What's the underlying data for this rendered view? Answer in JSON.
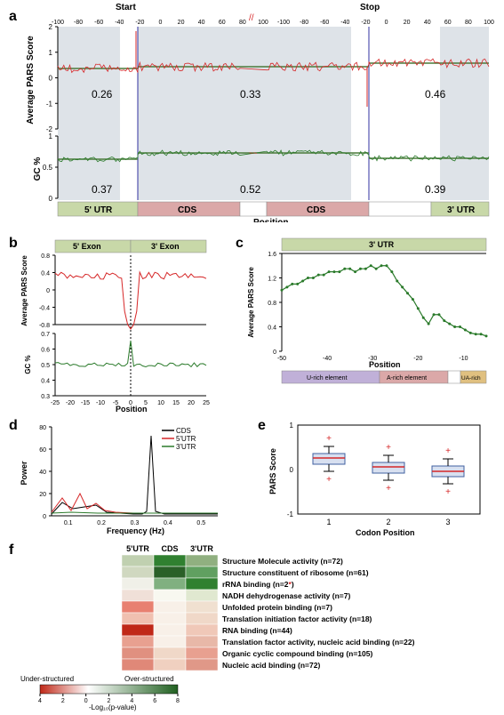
{
  "panel_a": {
    "label": "a",
    "top_axis_ticks": [
      "-100",
      "-80",
      "-60",
      "-40",
      "-20",
      "0",
      "20",
      "40",
      "60",
      "80",
      "100",
      "-100",
      "-80",
      "-60",
      "-40",
      "-20",
      "0",
      "20",
      "40",
      "60",
      "80",
      "100"
    ],
    "start_label": "Start",
    "stop_label": "Stop",
    "pars_ylabel": "Average PARS Score",
    "pars_yticks": [
      "-2",
      "-1",
      "0",
      "1",
      "2"
    ],
    "pars_ylim": [
      -2,
      2
    ],
    "pars_color": "#d62728",
    "pars_hline_color": "#4a7a3a",
    "pars_values": {
      "5utr": "0.26",
      "cds": "0.33",
      "3utr": "0.46"
    },
    "gc_ylabel": "GC %",
    "gc_yticks": [
      "0",
      "0.5",
      "1"
    ],
    "gc_ylim": [
      0,
      1
    ],
    "gc_color": "#2a7a2a",
    "gc_values": {
      "5utr": "0.37",
      "cds": "0.52",
      "3utr": "0.39"
    },
    "x_label": "Position",
    "regions": [
      {
        "name": "5' UTR",
        "color": "#c8d8a8"
      },
      {
        "name": "CDS",
        "color": "#dba8a8"
      },
      {
        "name": "CDS",
        "color": "#dba8a8"
      },
      {
        "name": "3' UTR",
        "color": "#c8d8a8"
      }
    ],
    "shade_color": "#b8c0c8",
    "blue_line": "#3030a0"
  },
  "panel_b": {
    "label": "b",
    "top_regions": [
      {
        "name": "5' Exon",
        "color": "#c8d8a8"
      },
      {
        "name": "3' Exon",
        "color": "#c8d8a8"
      }
    ],
    "pars_ylabel": "Average PARS Score",
    "pars_yticks": [
      "-0.8",
      "-0.4",
      "0",
      "0.4",
      "0.8"
    ],
    "pars_color": "#d62728",
    "gc_ylabel": "GC %",
    "gc_yticks": [
      "0.3",
      "0.4",
      "0.5",
      "0.6",
      "0.7"
    ],
    "gc_color": "#2a7a2a",
    "xticks": [
      "-25",
      "-20",
      "-15",
      "-10",
      "-5",
      "0",
      "5",
      "10",
      "15",
      "20",
      "25"
    ],
    "x_label": "Position"
  },
  "panel_c": {
    "label": "c",
    "top_region": {
      "name": "3' UTR",
      "color": "#c8d8a8"
    },
    "ylabel": "Average PARS Score",
    "yticks": [
      "0",
      "0.4",
      "0.8",
      "1.2",
      "1.6"
    ],
    "xticks": [
      "-50",
      "-40",
      "-30",
      "-20",
      "-10"
    ],
    "x_label": "Position",
    "color": "#2a7a2a",
    "bottom_regions": [
      {
        "name": "U-rich element",
        "color": "#b8a8d0"
      },
      {
        "name": "A-rich element",
        "color": "#dba8a8"
      },
      {
        "name": "",
        "color": "#ffffff"
      },
      {
        "name": "UA-rich",
        "color": "#e0c080"
      }
    ]
  },
  "panel_d": {
    "label": "d",
    "ylabel": "Power",
    "yticks": [
      "0",
      "20",
      "40",
      "60",
      "80"
    ],
    "xticks": [
      "0.1",
      "0.2",
      "0.3",
      "0.4",
      "0.5"
    ],
    "xlabel": "Frequency (Hz)",
    "legend": [
      {
        "name": "CDS",
        "color": "#000000"
      },
      {
        "name": "5'UTR",
        "color": "#d62728"
      },
      {
        "name": "3'UTR",
        "color": "#2a7a2a"
      }
    ]
  },
  "panel_e": {
    "label": "e",
    "ylabel": "PARS Score",
    "yticks": [
      "-1",
      "0",
      "1"
    ],
    "xticks": [
      "1",
      "2",
      "3"
    ],
    "xlabel": "Codon Position",
    "box_color": "#b0c0e0",
    "median_color": "#d62728"
  },
  "panel_f": {
    "label": "f",
    "col_headers": [
      "5'UTR",
      "CDS",
      "3'UTR"
    ],
    "rows": [
      {
        "label": "Structure Molecule activity (n=72)",
        "values": [
          "#c0d0b0",
          "#308030",
          "#90b080"
        ]
      },
      {
        "label": "Structure constituent of ribosome (n=61)",
        "values": [
          "#d0d8c0",
          "#2a6028",
          "#60a060"
        ]
      },
      {
        "label": "rRNA binding (n=2*)",
        "values": [
          "#f0f0e8",
          "#80b080",
          "#308030"
        ],
        "star": "*"
      },
      {
        "label": "NADH dehydrogenase activity (n=7)",
        "values": [
          "#f0e0d8",
          "#f8f8f0",
          "#e0e8d0"
        ]
      },
      {
        "label": "Unfolded protein binding (n=7)",
        "values": [
          "#e88070",
          "#f8f0e8",
          "#f0e0d0"
        ]
      },
      {
        "label": "Translation initiation factor activity (n=18)",
        "values": [
          "#f0c0b0",
          "#f8f0e8",
          "#f0d8c8"
        ]
      },
      {
        "label": "RNA binding (n=44)",
        "values": [
          "#c02818",
          "#f8f0e8",
          "#f0c8b8"
        ]
      },
      {
        "label": "Translation factor activity, nucleic acid binding (n=22)",
        "values": [
          "#e8a090",
          "#f8f0e8",
          "#e8b8a8"
        ]
      },
      {
        "label": "Organic cyclic compound binding (n=105)",
        "values": [
          "#e09080",
          "#f0d8c8",
          "#e8a090"
        ]
      },
      {
        "label": "Nucleic acid binding (n=72)",
        "values": [
          "#e08878",
          "#f0d0c0",
          "#e09888"
        ]
      }
    ],
    "scale_left": "Under-structured",
    "scale_right": "Over-structured",
    "scale_label": "-Log₁₀(p-value)",
    "scale_ticks": [
      "4",
      "2",
      "0",
      "2",
      "4",
      "6",
      "8"
    ],
    "scale_colors": [
      "#c02818",
      "#ffffff",
      "#206020"
    ]
  }
}
